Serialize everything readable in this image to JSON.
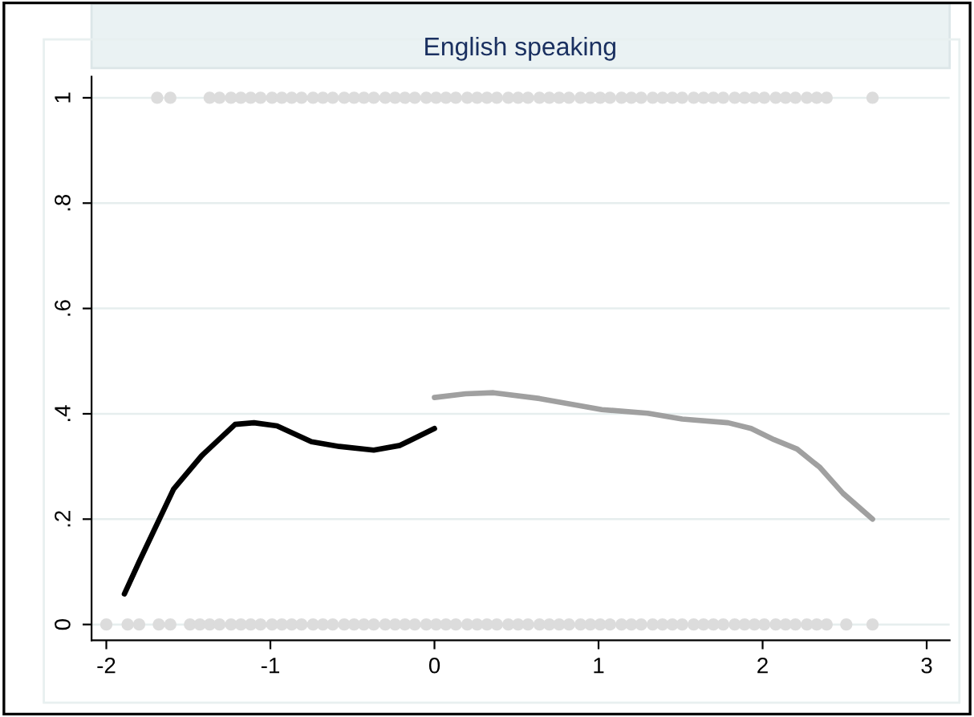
{
  "chart_data": {
    "type": "line",
    "title": "English speaking",
    "xlim": [
      -2.09,
      3.14
    ],
    "xticks": [
      -2,
      -1,
      0,
      1,
      2,
      3
    ],
    "ylim": [
      -0.03,
      1.04
    ],
    "yticks": [
      {
        "value": 0,
        "label": "0"
      },
      {
        "value": 0.2,
        "label": ".2"
      },
      {
        "value": 0.4,
        "label": ".4"
      },
      {
        "value": 0.6,
        "label": ".6"
      },
      {
        "value": 0.8,
        "label": ".8"
      },
      {
        "value": 1,
        "label": "1"
      }
    ],
    "grid": "y",
    "legend": false,
    "line_style": "solid",
    "series": [
      {
        "type": "scatter",
        "marker": "circle",
        "color": "#dcdcdc",
        "x": [
          -1.69,
          -1.61,
          -1.37,
          -1.31,
          -1.24,
          -1.18,
          -1.12,
          -1.06,
          -0.99,
          -0.93,
          -0.87,
          -0.81,
          -0.74,
          -0.68,
          -0.62,
          -0.55,
          -0.49,
          -0.43,
          -0.37,
          -0.3,
          -0.24,
          -0.18,
          -0.12,
          -0.05,
          0.01,
          0.07,
          0.13,
          0.2,
          0.26,
          0.32,
          0.38,
          0.45,
          0.51,
          0.57,
          0.64,
          0.7,
          0.76,
          0.82,
          0.89,
          0.95,
          1.01,
          1.07,
          1.14,
          1.2,
          1.26,
          1.33,
          1.39,
          1.45,
          1.51,
          1.58,
          1.64,
          1.7,
          1.76,
          1.83,
          1.89,
          1.95,
          2.01,
          2.08,
          2.14,
          2.2,
          2.27,
          2.33,
          2.39,
          2.67
        ],
        "values": [
          1,
          1,
          1,
          1,
          1,
          1,
          1,
          1,
          1,
          1,
          1,
          1,
          1,
          1,
          1,
          1,
          1,
          1,
          1,
          1,
          1,
          1,
          1,
          1,
          1,
          1,
          1,
          1,
          1,
          1,
          1,
          1,
          1,
          1,
          1,
          1,
          1,
          1,
          1,
          1,
          1,
          1,
          1,
          1,
          1,
          1,
          1,
          1,
          1,
          1,
          1,
          1,
          1,
          1,
          1,
          1,
          1,
          1,
          1,
          1,
          1,
          1,
          1,
          1
        ]
      },
      {
        "type": "scatter",
        "marker": "circle",
        "color": "#dcdcdc",
        "x": [
          -2.0,
          -1.87,
          -1.8,
          -1.68,
          -1.61,
          -1.49,
          -1.43,
          -1.37,
          -1.31,
          -1.24,
          -1.18,
          -1.12,
          -1.06,
          -0.99,
          -0.93,
          -0.87,
          -0.81,
          -0.74,
          -0.68,
          -0.62,
          -0.55,
          -0.49,
          -0.43,
          -0.37,
          -0.3,
          -0.24,
          -0.18,
          -0.12,
          -0.05,
          0.01,
          0.07,
          0.13,
          0.2,
          0.26,
          0.32,
          0.38,
          0.45,
          0.51,
          0.57,
          0.64,
          0.7,
          0.76,
          0.82,
          0.89,
          0.95,
          1.01,
          1.07,
          1.14,
          1.2,
          1.26,
          1.33,
          1.39,
          1.45,
          1.51,
          1.58,
          1.64,
          1.7,
          1.76,
          1.83,
          1.89,
          1.95,
          2.01,
          2.08,
          2.14,
          2.2,
          2.27,
          2.33,
          2.39,
          2.51,
          2.67
        ],
        "values": [
          0,
          0,
          0,
          0,
          0,
          0,
          0,
          0,
          0,
          0,
          0,
          0,
          0,
          0,
          0,
          0,
          0,
          0,
          0,
          0,
          0,
          0,
          0,
          0,
          0,
          0,
          0,
          0,
          0,
          0,
          0,
          0,
          0,
          0,
          0,
          0,
          0,
          0,
          0,
          0,
          0,
          0,
          0,
          0,
          0,
          0,
          0,
          0,
          0,
          0,
          0,
          0,
          0,
          0,
          0,
          0,
          0,
          0,
          0,
          0,
          0,
          0,
          0,
          0,
          0,
          0,
          0,
          0,
          0,
          0
        ]
      },
      {
        "marker": "none",
        "color": "#000000",
        "x": [
          -1.89,
          -1.8,
          -1.59,
          -1.42,
          -1.215,
          -1.1,
          -0.96,
          -0.75,
          -0.58,
          -0.37,
          -0.21,
          0.0
        ],
        "values": [
          0.058,
          0.119,
          0.257,
          0.32,
          0.38,
          0.383,
          0.377,
          0.347,
          0.338,
          0.331,
          0.34,
          0.372
        ]
      },
      {
        "marker": "none",
        "color": "#a0a0a0",
        "x": [
          0.0,
          0.19,
          0.36,
          0.64,
          1.02,
          1.3,
          1.51,
          1.79,
          1.93,
          2.07,
          2.21,
          2.35,
          2.49,
          2.67
        ],
        "values": [
          0.431,
          0.438,
          0.44,
          0.429,
          0.408,
          0.401,
          0.39,
          0.383,
          0.372,
          0.351,
          0.333,
          0.298,
          0.249,
          0.2
        ]
      }
    ]
  }
}
